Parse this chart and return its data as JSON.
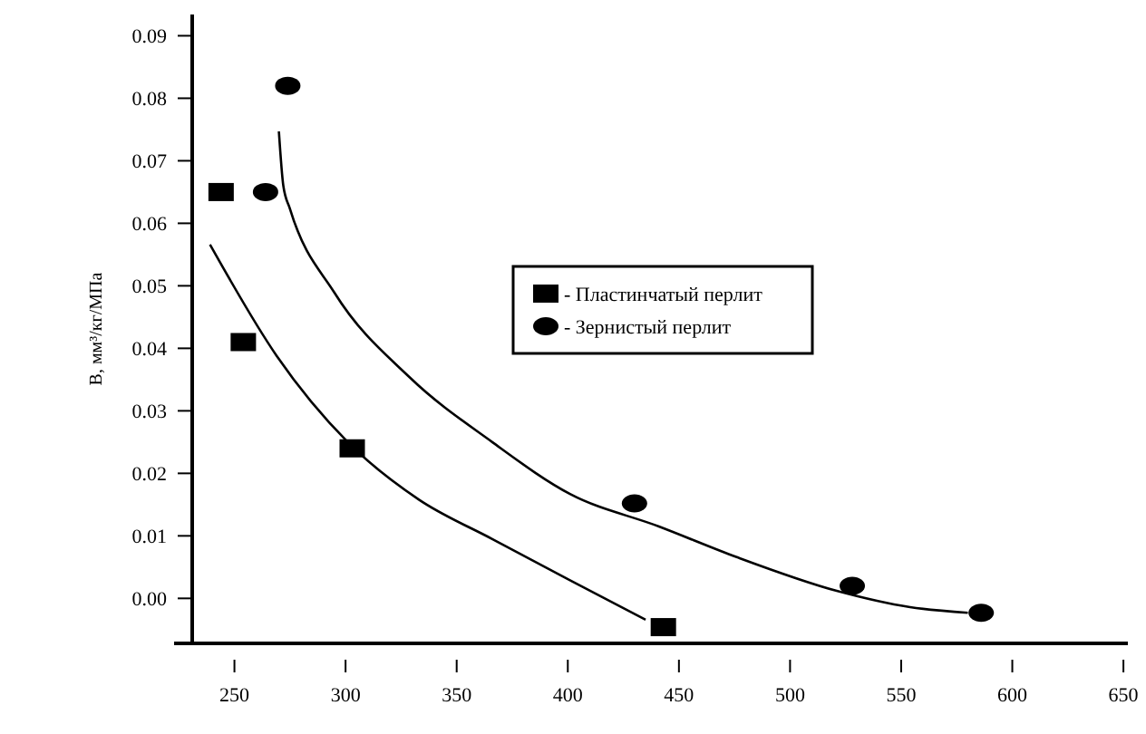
{
  "chart_data": {
    "type": "scatter",
    "ylabel": "B, мм³/кг/МПа",
    "xlim": [
      231,
      652
    ],
    "ylim": [
      -0.0072,
      0.0934
    ],
    "xticks": [
      250,
      300,
      350,
      400,
      450,
      500,
      550,
      600,
      650
    ],
    "yticks": [
      {
        "value": 0,
        "label": "0.00"
      },
      0.01,
      0.02,
      0.03,
      0.04,
      0.05,
      0.06,
      0.07,
      0.08,
      0.09
    ],
    "grid": false,
    "legend": "right",
    "series": [
      {
        "name": "- Пластинчатый перлит",
        "marker": "square",
        "color": "#000000",
        "x": [
          244,
          254,
          303,
          443
        ],
        "values": [
          0.065,
          0.041,
          0.024,
          -0.0046
        ]
      },
      {
        "name": "- Зернистый перлит",
        "marker": "circle",
        "color": "#000000",
        "x": [
          264,
          274,
          430,
          528,
          586
        ],
        "values": [
          0.065,
          0.082,
          0.0152,
          0.002,
          -0.0023
        ]
      },
      {
        "type": "line",
        "color": "#000000",
        "x": [
          239,
          269,
          301,
          333,
          366,
          401,
          435
        ],
        "values": [
          0.0566,
          0.0388,
          0.025,
          0.0158,
          0.0095,
          0.0029,
          -0.0034
        ]
      },
      {
        "type": "line",
        "color": "#000000",
        "x": [
          270,
          272,
          275,
          295,
          329,
          366,
          401,
          441,
          476,
          521,
          554,
          580
        ],
        "values": [
          0.0747,
          0.066,
          0.0623,
          0.0489,
          0.0353,
          0.025,
          0.0167,
          0.0115,
          0.0066,
          0.0012,
          -0.0014,
          -0.0023
        ]
      }
    ]
  }
}
